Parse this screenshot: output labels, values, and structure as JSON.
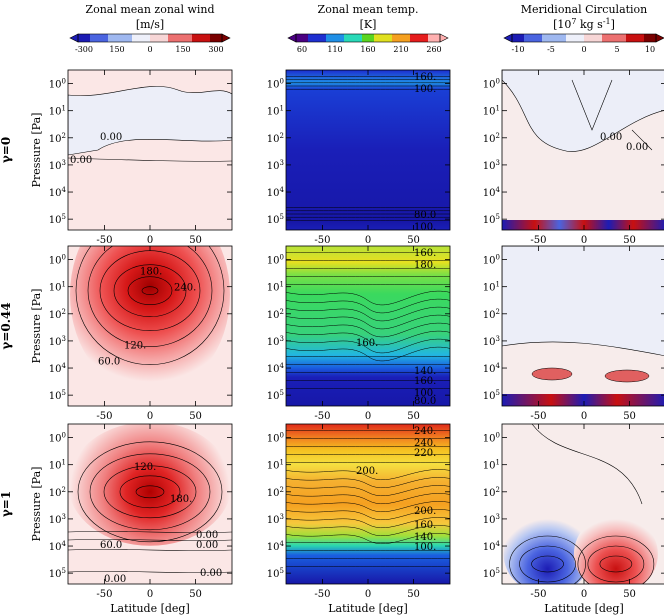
{
  "figure": {
    "y_axis_label": "Pressure [Pa]",
    "x_axis_label": "Latitude [deg]"
  },
  "chart_data": [
    {
      "type": "heatmap",
      "column": "wind",
      "title": "Zonal mean zonal wind",
      "units": "[m/s]",
      "colorbar": {
        "ticks": [
          "-300",
          "150",
          "0",
          "150",
          "300"
        ],
        "colors": [
          "#1c1cb4",
          "#4a64e0",
          "#9fb8f0",
          "#eef0fa",
          "#f7d6d6",
          "#ec7070",
          "#c81010",
          "#7a0000"
        ]
      }
    },
    {
      "type": "heatmap",
      "column": "temp",
      "title": "Zonal mean temp.",
      "units": "[K]",
      "colorbar": {
        "ticks": [
          "60",
          "110",
          "160",
          "210",
          "260"
        ],
        "colors": [
          "#4b0082",
          "#1e2fd0",
          "#1f8fe6",
          "#29d9b8",
          "#5ad520",
          "#e0e020",
          "#f5a020",
          "#e61d1d",
          "#ffb0b0"
        ]
      }
    },
    {
      "type": "heatmap",
      "column": "circ",
      "title": "Meridional Circulation",
      "units": "[10^7 kg s^-1]",
      "colorbar": {
        "ticks": [
          "-10",
          "-5",
          "0",
          "5",
          "10"
        ],
        "colors": [
          "#1c1cb4",
          "#4a64e0",
          "#9fb8f0",
          "#eef0fa",
          "#f7d6d6",
          "#ec7070",
          "#c81010",
          "#7a0000"
        ]
      }
    }
  ],
  "rows": [
    {
      "label": "γ=0",
      "wind_labels": [
        "0.00",
        "0.00"
      ],
      "temp_labels": [
        "160.",
        "100.",
        "80.0",
        "100."
      ],
      "circ_labels": [
        "0.00",
        "0.00"
      ]
    },
    {
      "label": "γ=0.44",
      "wind_labels": [
        "180.",
        "240.",
        "120.",
        "60.0"
      ],
      "temp_labels": [
        "160.",
        "180.",
        "160.",
        "140.",
        "160.",
        "100.",
        "80.0"
      ],
      "circ_labels": []
    },
    {
      "label": "γ=1",
      "wind_labels": [
        "120.",
        "180.",
        "60.0",
        "0.00",
        "0.00",
        "0.00",
        "0.00"
      ],
      "temp_labels": [
        "240.",
        "240.",
        "220.",
        "200.",
        "200.",
        "160.",
        "140.",
        "100."
      ],
      "circ_labels": []
    }
  ],
  "axes": {
    "x_ticks": [
      "-50",
      "0",
      "50"
    ],
    "x_values": [
      -50,
      0,
      50
    ],
    "xlim": [
      -90,
      90
    ],
    "y_ticks": [
      "10^0",
      "10^1",
      "10^2",
      "10^3",
      "10^4",
      "10^5"
    ],
    "y_exponents": [
      0,
      1,
      2,
      3,
      4,
      5
    ],
    "ylim_exponent": [
      -0.5,
      5.4
    ]
  }
}
